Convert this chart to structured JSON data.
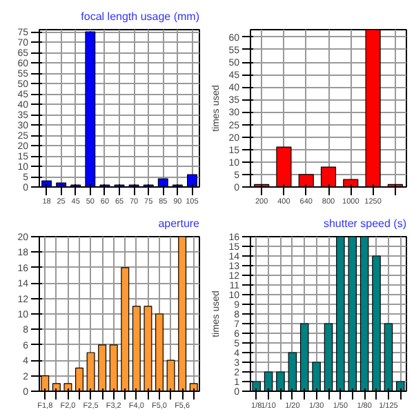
{
  "chart_data": [
    {
      "type": "bar",
      "title": "focal length usage (mm)",
      "categories": [
        "18",
        "25",
        "45",
        "50",
        "60",
        "65",
        "70",
        "75",
        "85",
        "90",
        "105"
      ],
      "values": [
        3,
        2,
        1,
        75,
        1,
        1,
        1,
        1,
        4,
        1,
        6
      ],
      "color": "#0000ff",
      "ylim": [
        0,
        76
      ],
      "yticks": [
        0,
        5,
        10,
        15,
        20,
        25,
        30,
        35,
        40,
        45,
        50,
        55,
        60,
        65,
        70,
        75
      ],
      "grid": true
    },
    {
      "type": "bar",
      "ylabel": "times used",
      "categories": [
        "200",
        "400",
        "640",
        "800",
        "1000",
        "1250",
        null
      ],
      "values": [
        1,
        16,
        5,
        8,
        3,
        63,
        1
      ],
      "color": "#ff0000",
      "ylim": [
        0,
        63
      ],
      "yticks": [
        0,
        5,
        10,
        15,
        20,
        25,
        30,
        35,
        40,
        45,
        50,
        55,
        60
      ],
      "grid": true
    },
    {
      "type": "bar",
      "title": "aperture",
      "categories": [
        "F1,8",
        null,
        "F2,0",
        null,
        "F2,5",
        null,
        "F3,2",
        null,
        "F4,0",
        null,
        "F5,0",
        null,
        "F5,6",
        null
      ],
      "values": [
        2,
        1,
        1,
        3,
        5,
        6,
        6,
        16,
        11,
        11,
        10,
        4,
        20,
        1
      ],
      "color": "#ff9933",
      "ylim": [
        0,
        20
      ],
      "yticks": [
        0,
        2,
        4,
        6,
        8,
        10,
        12,
        14,
        16,
        18,
        20
      ],
      "grid": true
    },
    {
      "type": "bar",
      "title": "shutter speed (s)",
      "ylabel": "times used",
      "categories": [
        "1/8",
        "1/10",
        null,
        "1/20",
        null,
        "1/30",
        null,
        "1/50",
        null,
        "1/80",
        null,
        "1/125",
        null
      ],
      "values": [
        1,
        2,
        2,
        4,
        7,
        3,
        7,
        16,
        16,
        16,
        14,
        7,
        1
      ],
      "color": "#008080",
      "ylim": [
        0,
        16
      ],
      "yticks": [
        0,
        1,
        2,
        3,
        4,
        5,
        6,
        7,
        8,
        9,
        10,
        11,
        12,
        13,
        14,
        15,
        16
      ],
      "grid": true
    }
  ]
}
